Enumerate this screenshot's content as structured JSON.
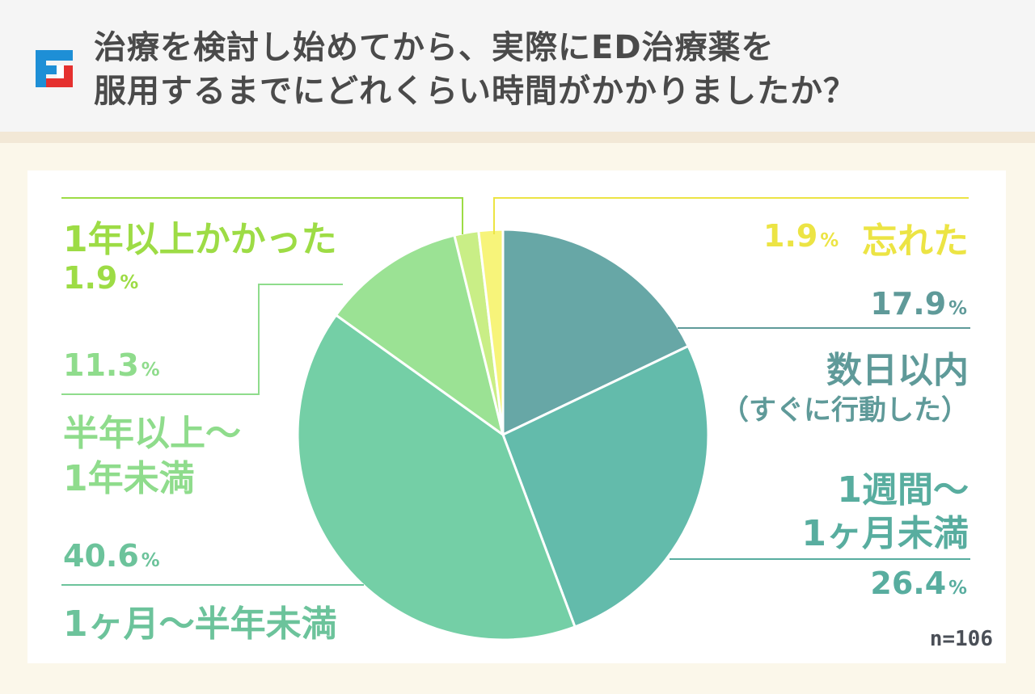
{
  "title": {
    "line1": "治療を検討し始めてから、実際にED治療薬を",
    "line2": "服用するまでにどれくらい時間がかかりましたか？"
  },
  "logo_icon": "f-logo-icon",
  "sample_size": "n=106",
  "colors": {
    "title": "#4a4a4a",
    "header_bg": "#f5f5f5",
    "page_bg": "#fbf7ea",
    "panel_bg": "#ffffff"
  },
  "chart_data": {
    "type": "pie",
    "start_angle_deg": 0,
    "direction": "clockwise",
    "title": "",
    "slices": [
      {
        "label": "数日以内（すぐに行動した）",
        "label_line1": "数日以内",
        "label_line2": "（すぐに行動した）",
        "value": 17.9,
        "value_text": "17.9",
        "color": "#67a7a6"
      },
      {
        "label": "1週間～1ヶ月未満",
        "label_line1": "1週間～",
        "label_line2": "1ヶ月未満",
        "value": 26.4,
        "value_text": "26.4",
        "color": "#63bbab"
      },
      {
        "label": "1ヶ月～半年未満",
        "label_line1": "1ヶ月～半年未満",
        "value": 40.6,
        "value_text": "40.6",
        "color": "#74cfa6"
      },
      {
        "label": "半年以上～1年未満",
        "label_line1": "半年以上～",
        "label_line2": "1年未満",
        "value": 11.3,
        "value_text": "11.3",
        "color": "#9be294"
      },
      {
        "label": "1年以上かかった",
        "label_line1": "1年以上かかった",
        "value": 1.9,
        "value_text": "1.9",
        "color": "#c9ee86"
      },
      {
        "label": "忘れた",
        "label_line1": "忘れた",
        "value": 1.9,
        "value_text": "1.9",
        "color": "#f7f47a"
      }
    ],
    "percent_unit": "%",
    "label_colors": [
      "#5f9a99",
      "#58ad9f",
      "#6cc39b",
      "#8fdc8c",
      "#9ddc45",
      "#ece444"
    ]
  }
}
